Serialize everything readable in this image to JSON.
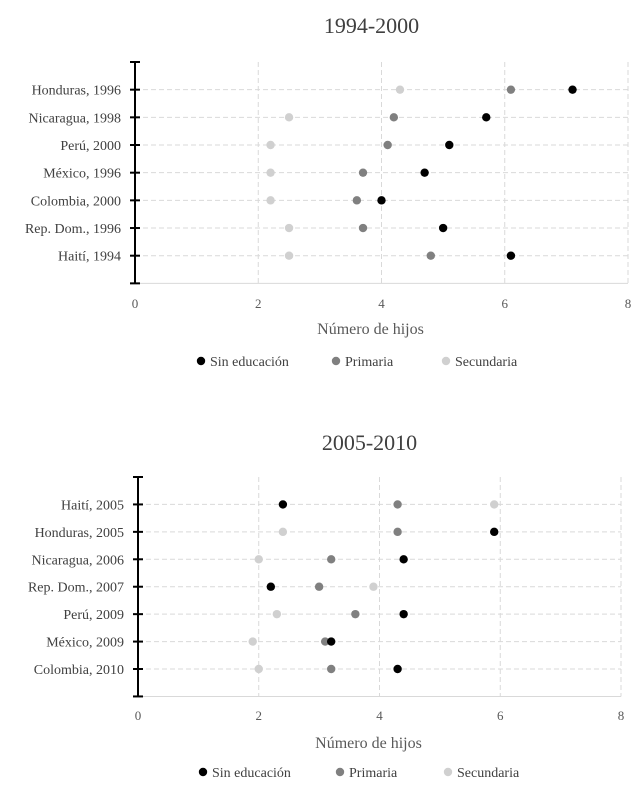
{
  "chart_data": [
    {
      "type": "scatter",
      "title": "1994-2000",
      "xlabel": "Número de hijos",
      "ylabel": "",
      "xlim": [
        0,
        8
      ],
      "x_ticks": [
        "0",
        "2",
        "4",
        "6",
        "8"
      ],
      "grid": true,
      "legend_position": "bottom",
      "categories": [
        "Honduras, 1996",
        "Nicaragua,  1998",
        "Perú, 2000",
        "México, 1996",
        "Colombia, 2000",
        "Rep. Dom., 1996",
        "Haití, 1994"
      ],
      "series": [
        {
          "name": "Sin educación",
          "color": "#000000",
          "values": [
            7.1,
            5.7,
            5.1,
            4.7,
            4.0,
            5.0,
            6.1
          ]
        },
        {
          "name": "Primaria",
          "color": "#808080",
          "values": [
            6.1,
            4.2,
            4.1,
            3.7,
            3.6,
            3.7,
            4.8
          ]
        },
        {
          "name": "Secundaria",
          "color": "#d0d0d0",
          "values": [
            4.3,
            2.5,
            2.2,
            2.2,
            2.2,
            2.5,
            2.5
          ]
        }
      ]
    },
    {
      "type": "scatter",
      "title": "2005-2010",
      "xlabel": "Número de hijos",
      "ylabel": "",
      "xlim": [
        0,
        8
      ],
      "x_ticks": [
        "0",
        "2",
        "4",
        "6",
        "8"
      ],
      "grid": true,
      "legend_position": "bottom",
      "categories": [
        "Haití, 2005",
        "Honduras, 2005",
        "Nicaragua, 2006",
        "Rep. Dom., 2007",
        "Perú, 2009",
        "México, 2009",
        "Colombia, 2010"
      ],
      "series": [
        {
          "name": "Sin educación",
          "color": "#000000",
          "values": [
            2.4,
            5.9,
            4.4,
            2.2,
            4.4,
            3.2,
            4.3
          ]
        },
        {
          "name": "Primaria",
          "color": "#808080",
          "values": [
            4.3,
            4.3,
            3.2,
            3.0,
            3.6,
            3.1,
            3.2
          ]
        },
        {
          "name": "Secundaria",
          "color": "#d0d0d0",
          "values": [
            5.9,
            2.4,
            2.0,
            3.9,
            2.3,
            1.9,
            2.0
          ]
        }
      ]
    }
  ]
}
